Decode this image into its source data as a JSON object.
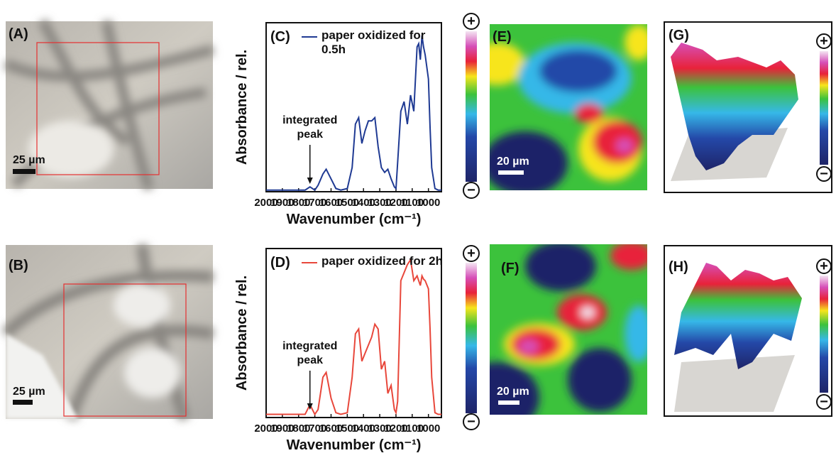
{
  "panels": {
    "A": {
      "label": "(A)",
      "scale": "25 µm"
    },
    "B": {
      "label": "(B)",
      "scale": "25 µm"
    },
    "E": {
      "label": "(E)",
      "scale": "20 µm"
    },
    "F": {
      "label": "(F)",
      "scale": "20 µm"
    },
    "G": {
      "label": "(G)"
    },
    "H": {
      "label": "(H)"
    },
    "colorbar": {
      "plus": "+",
      "minus": "−"
    }
  },
  "chart_data": [
    {
      "type": "line",
      "label": "(C)",
      "ylabel": "Absorbance / rel.",
      "xlabel": "Wavenumber (cm⁻¹)",
      "xlim": [
        2000,
        920
      ],
      "ylim": [
        0,
        1.05
      ],
      "xticks": [
        2000,
        1900,
        1800,
        1700,
        1600,
        1500,
        1400,
        1300,
        1200,
        1100,
        1000
      ],
      "x": [
        2000,
        1900,
        1800,
        1760,
        1730,
        1700,
        1680,
        1650,
        1630,
        1600,
        1570,
        1540,
        1500,
        1470,
        1450,
        1430,
        1410,
        1390,
        1370,
        1350,
        1330,
        1310,
        1290,
        1270,
        1250,
        1230,
        1210,
        1200,
        1190,
        1170,
        1150,
        1130,
        1110,
        1090,
        1070,
        1060,
        1050,
        1040,
        1030,
        1020,
        1000,
        990,
        980,
        960,
        940,
        920
      ],
      "series": [
        {
          "name": "paper oxidized for 0.5h",
          "color": "#1f3a93",
          "values": [
            0.01,
            0.01,
            0.01,
            0.01,
            0.03,
            0.01,
            0.04,
            0.11,
            0.14,
            0.08,
            0.02,
            0.01,
            0.02,
            0.15,
            0.42,
            0.46,
            0.3,
            0.38,
            0.44,
            0.44,
            0.46,
            0.28,
            0.15,
            0.12,
            0.14,
            0.08,
            0.03,
            0.02,
            0.18,
            0.5,
            0.56,
            0.42,
            0.6,
            0.5,
            0.9,
            0.92,
            0.82,
            0.97,
            0.9,
            0.85,
            0.7,
            0.4,
            0.15,
            0.02,
            0.01,
            0.01
          ]
        }
      ],
      "annotation": {
        "text": "integrated peak",
        "x": 1730
      }
    },
    {
      "type": "line",
      "label": "(D)",
      "ylabel": "Absorbance / rel.",
      "xlabel": "Wavenumber (cm⁻¹)",
      "xlim": [
        2000,
        920
      ],
      "ylim": [
        0,
        1.05
      ],
      "xticks": [
        2000,
        1900,
        1800,
        1700,
        1600,
        1500,
        1400,
        1300,
        1200,
        1100,
        1000
      ],
      "x": [
        2000,
        1900,
        1800,
        1760,
        1730,
        1700,
        1680,
        1650,
        1630,
        1600,
        1570,
        1540,
        1500,
        1470,
        1450,
        1430,
        1410,
        1390,
        1370,
        1350,
        1330,
        1310,
        1290,
        1270,
        1250,
        1230,
        1210,
        1200,
        1190,
        1170,
        1150,
        1130,
        1110,
        1090,
        1070,
        1060,
        1050,
        1040,
        1030,
        1020,
        1000,
        990,
        980,
        960,
        940,
        920
      ],
      "series": [
        {
          "name": "paper oxidized for 2h",
          "color": "#e8473b",
          "values": [
            0.02,
            0.02,
            0.02,
            0.02,
            0.08,
            0.02,
            0.05,
            0.25,
            0.28,
            0.12,
            0.03,
            0.02,
            0.03,
            0.25,
            0.52,
            0.55,
            0.35,
            0.4,
            0.45,
            0.5,
            0.58,
            0.55,
            0.3,
            0.35,
            0.15,
            0.2,
            0.05,
            0.03,
            0.1,
            0.85,
            0.9,
            0.95,
            0.98,
            0.85,
            0.88,
            0.85,
            0.82,
            0.88,
            0.86,
            0.85,
            0.8,
            0.55,
            0.25,
            0.03,
            0.02,
            0.02
          ]
        }
      ],
      "annotation": {
        "text": "integrated peak",
        "x": 1730
      }
    }
  ]
}
